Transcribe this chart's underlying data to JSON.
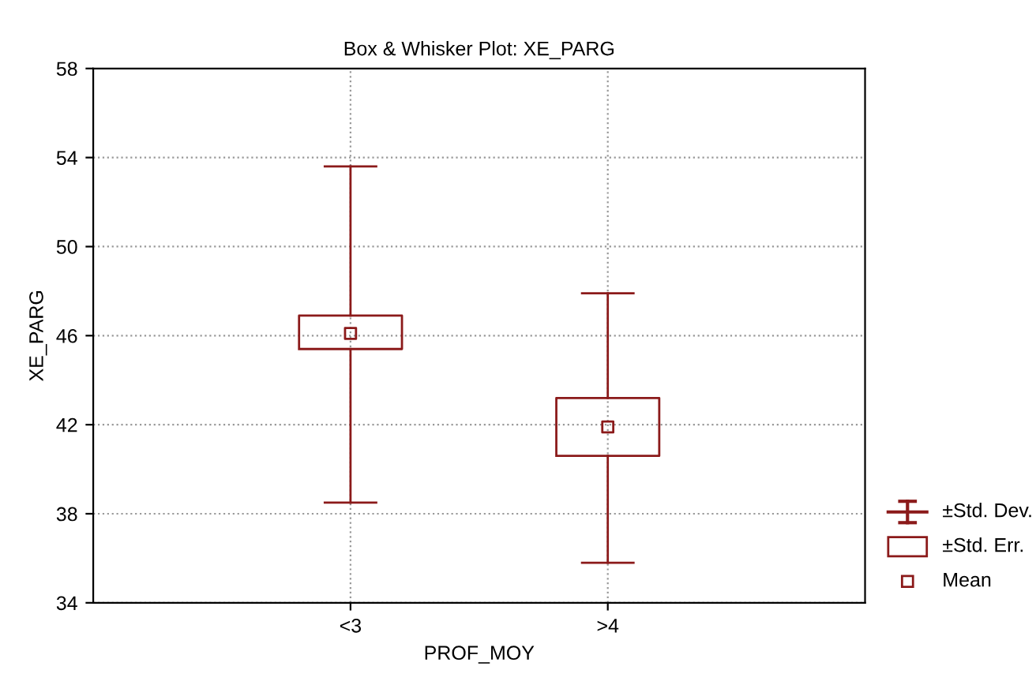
{
  "chart_data": {
    "type": "box",
    "title": "Box & Whisker Plot: XE_PARG",
    "xlabel": "PROF_MOY",
    "ylabel": "XE_PARG",
    "categories": [
      "<3",
      ">4"
    ],
    "boxes": [
      {
        "low": 38.5,
        "q1": 45.4,
        "median": 46.1,
        "q3": 46.9,
        "high": 53.6
      },
      {
        "low": 35.8,
        "q1": 40.6,
        "median": 41.9,
        "q3": 43.2,
        "high": 47.9
      }
    ],
    "color": "#8b1a1a",
    "ylim": [
      34,
      58
    ],
    "yticks": [
      34,
      38,
      42,
      46,
      50,
      54,
      58
    ],
    "grid": true,
    "marker": "square",
    "annotations": [
      "±Std. Dev.",
      "±Std. Err.",
      "Mean"
    ]
  }
}
